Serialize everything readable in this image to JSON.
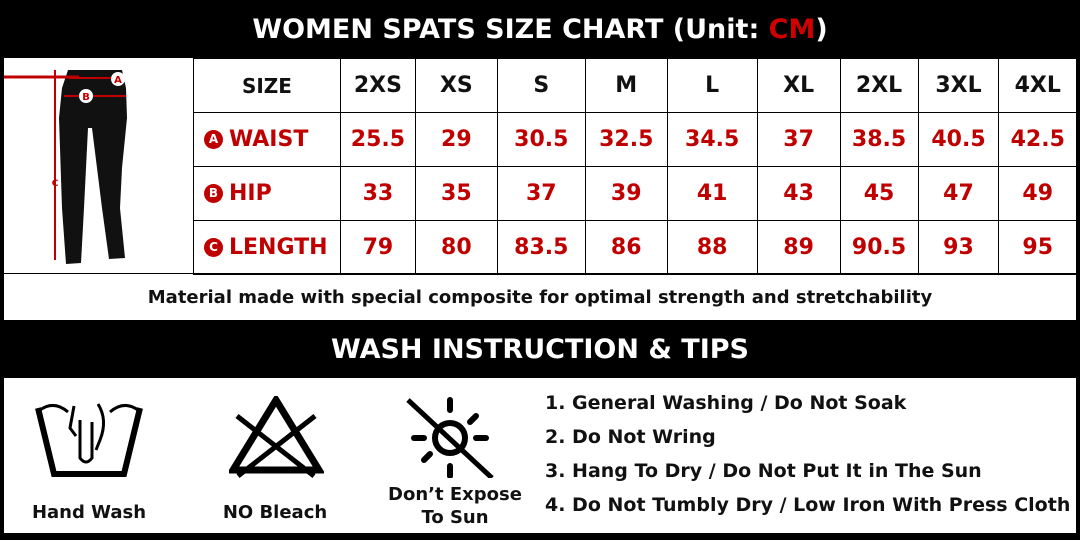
{
  "title": {
    "text": "WOMEN SPATS SIZE CHART (Unit: ",
    "unit": "CM",
    "close": ")"
  },
  "figure": {
    "labels": [
      "A",
      "B",
      "C"
    ]
  },
  "size_table": {
    "header_label": "SIZE",
    "sizes": [
      "2XS",
      "XS",
      "S",
      "M",
      "L",
      "XL",
      "2XL",
      "3XL",
      "4XL"
    ],
    "rows": [
      {
        "badge": "A",
        "label": "WAIST",
        "values": [
          "25.5",
          "29",
          "30.5",
          "32.5",
          "34.5",
          "37",
          "38.5",
          "40.5",
          "42.5"
        ]
      },
      {
        "badge": "B",
        "label": "HIP",
        "values": [
          "33",
          "35",
          "37",
          "39",
          "41",
          "43",
          "45",
          "47",
          "49"
        ]
      },
      {
        "badge": "C",
        "label": "LENGTH",
        "values": [
          "79",
          "80",
          "83.5",
          "86",
          "88",
          "89",
          "90.5",
          "93",
          "95"
        ]
      }
    ]
  },
  "material_note": "Material made with special composite for optimal strength and stretchability",
  "wash": {
    "title": "WASH INSTRUCTION & TIPS",
    "icons": [
      {
        "icon": "hand-wash-icon",
        "label": "Hand Wash"
      },
      {
        "icon": "no-bleach-icon",
        "label": "NO Bleach"
      },
      {
        "icon": "no-sun-icon",
        "label_1": "Don’t Expose",
        "label_2": "To Sun"
      }
    ],
    "tips": [
      "1. General Washing / Do Not Soak",
      "2. Do Not Wring",
      "3. Hang To Dry / Do Not Put It in The Sun",
      "4. Do Not Tumbly Dry / Low Iron With Press Cloth"
    ]
  },
  "colors": {
    "accent": "#c00000",
    "background": "#000000"
  }
}
